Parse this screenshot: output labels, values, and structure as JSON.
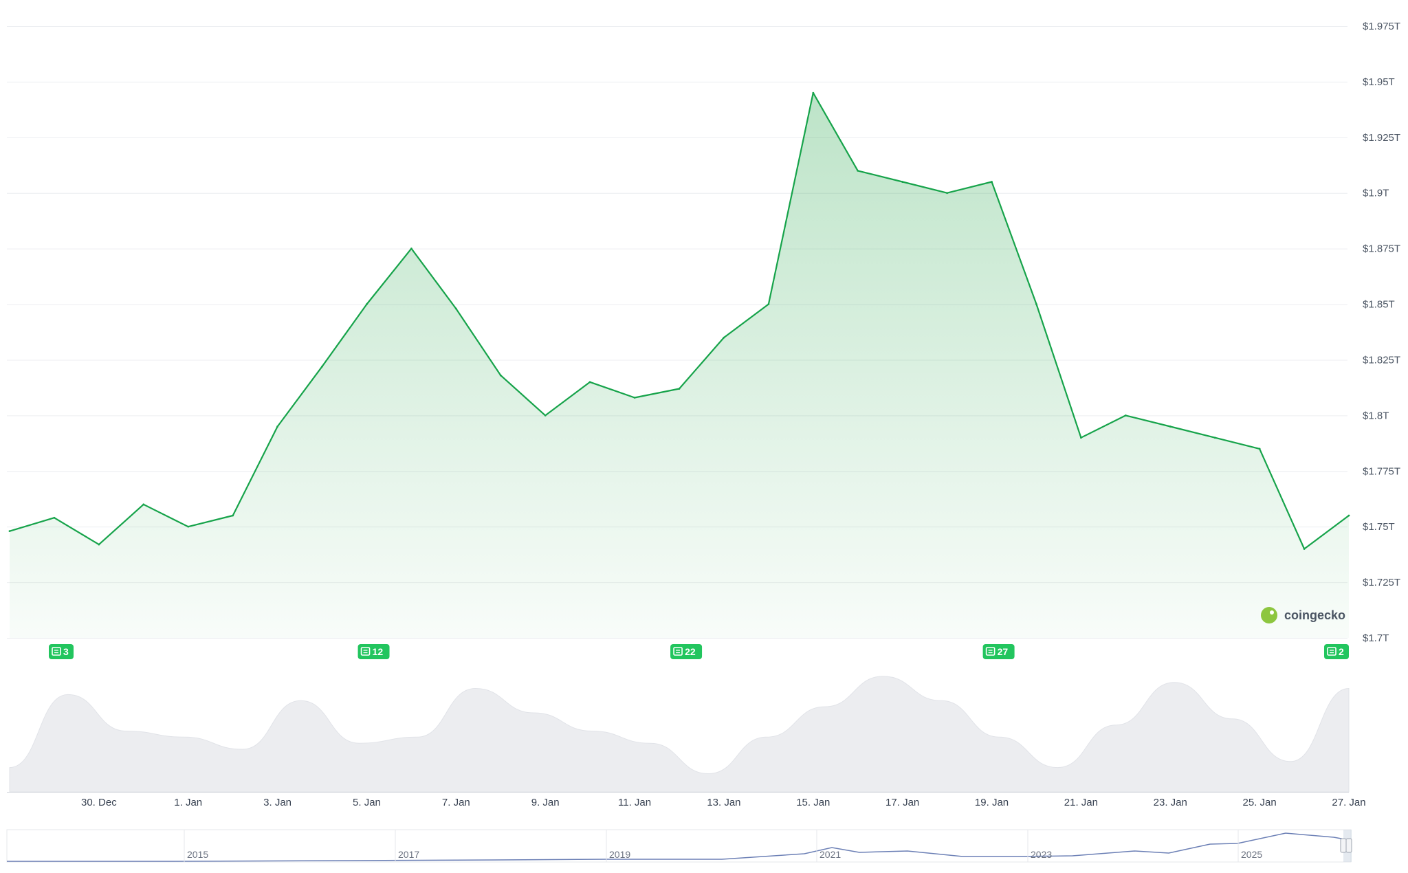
{
  "chart_data": {
    "type": "area",
    "title": "",
    "xlabel": "",
    "ylabel": "",
    "ylim": [
      1.7,
      1.975
    ],
    "xlim": [
      "2024-12-28",
      "2025-01-27"
    ],
    "grid": true,
    "legend": "none",
    "y_tick_labels": [
      "$1.975T",
      "$1.95T",
      "$1.925T",
      "$1.9T",
      "$1.875T",
      "$1.85T",
      "$1.825T",
      "$1.8T",
      "$1.775T",
      "$1.75T",
      "$1.725T",
      "$1.7T"
    ],
    "y_tick_values": [
      1.975,
      1.95,
      1.925,
      1.9,
      1.875,
      1.85,
      1.825,
      1.8,
      1.775,
      1.75,
      1.725,
      1.7
    ],
    "x_tick_labels": [
      "30. Dec",
      "1. Jan",
      "3. Jan",
      "5. Jan",
      "7. Jan",
      "9. Jan",
      "11. Jan",
      "13. Jan",
      "15. Jan",
      "17. Jan",
      "19. Jan",
      "21. Jan",
      "23. Jan",
      "25. Jan",
      "27. Jan"
    ],
    "x_tick_dates": [
      "2024-12-30",
      "2025-01-01",
      "2025-01-03",
      "2025-01-05",
      "2025-01-07",
      "2025-01-09",
      "2025-01-11",
      "2025-01-13",
      "2025-01-15",
      "2025-01-17",
      "2025-01-19",
      "2025-01-21",
      "2025-01-23",
      "2025-01-25",
      "2025-01-27"
    ],
    "series": [
      {
        "color": "#16a34a",
        "x": [
          "2024-12-28",
          "2024-12-29",
          "2024-12-30",
          "2024-12-31",
          "2025-01-01",
          "2025-01-02",
          "2025-01-03",
          "2025-01-04",
          "2025-01-05",
          "2025-01-06",
          "2025-01-07",
          "2025-01-08",
          "2025-01-09",
          "2025-01-10",
          "2025-01-11",
          "2025-01-12",
          "2025-01-13",
          "2025-01-14",
          "2025-01-15",
          "2025-01-16",
          "2025-01-17",
          "2025-01-18",
          "2025-01-19",
          "2025-01-20",
          "2025-01-21",
          "2025-01-22",
          "2025-01-23",
          "2025-01-24",
          "2025-01-25",
          "2025-01-26",
          "2025-01-27"
        ],
        "values": [
          1.748,
          1.754,
          1.742,
          1.76,
          1.75,
          1.755,
          1.795,
          1.822,
          1.85,
          1.875,
          1.848,
          1.818,
          1.8,
          1.815,
          1.808,
          1.812,
          1.835,
          1.85,
          1.945,
          1.91,
          1.905,
          1.9,
          1.905,
          1.85,
          1.79,
          1.8,
          1.795,
          1.79,
          1.785,
          1.74,
          1.755
        ]
      }
    ],
    "volume": {
      "type": "area",
      "values": [
        0.2,
        0.8,
        0.5,
        0.45,
        0.35,
        0.75,
        0.4,
        0.45,
        0.85,
        0.65,
        0.5,
        0.4,
        0.15,
        0.45,
        0.7,
        0.95,
        0.75,
        0.45,
        0.2,
        0.55,
        0.9,
        0.6,
        0.25,
        0.85
      ],
      "color": "#ecedf0"
    },
    "navigator": {
      "tick_labels": [
        "2015",
        "2017",
        "2019",
        "2021",
        "2023",
        "2025"
      ],
      "line_color": "#6b7fb5"
    },
    "markers": [
      {
        "label": "3",
        "date": "2024-12-28",
        "icon": "news-icon"
      },
      {
        "label": "12",
        "date": "2025-01-04",
        "icon": "news-icon"
      },
      {
        "label": "22",
        "date": "2025-01-11",
        "icon": "news-icon"
      },
      {
        "label": "27",
        "date": "2025-01-18",
        "icon": "news-icon"
      },
      {
        "label": "2",
        "date": "2025-01-26",
        "icon": "news-icon"
      }
    ],
    "watermark": "coingecko"
  }
}
